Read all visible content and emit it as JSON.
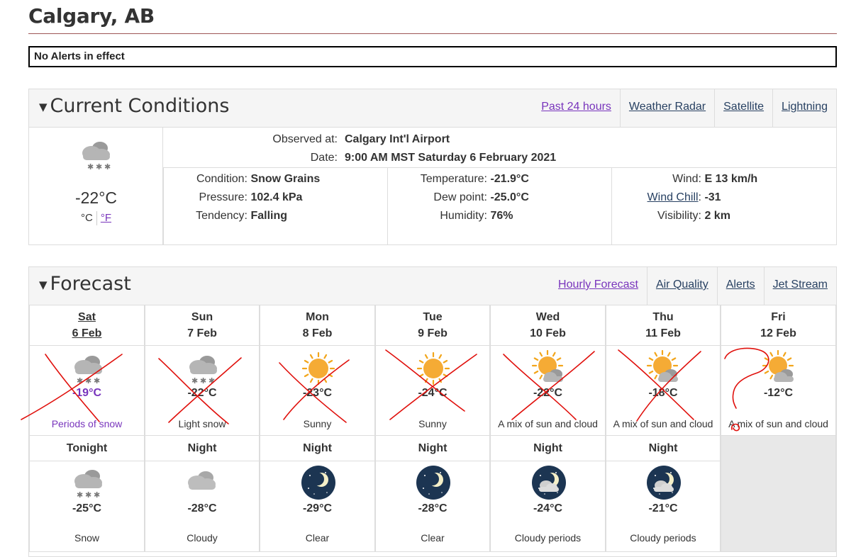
{
  "location": {
    "title": "Calgary, AB"
  },
  "alerts": {
    "text": "No Alerts in effect"
  },
  "current_conditions": {
    "heading": "Current Conditions",
    "links": [
      "Past 24 hours",
      "Weather Radar",
      "Satellite",
      "Lightning"
    ],
    "icon": "snow-grains-icon",
    "temp": "-22°C",
    "unit_c": "°C",
    "unit_f": "°F",
    "observed_label": "Observed at:",
    "observed_value": "Calgary Int'l Airport",
    "date_label": "Date:",
    "date_value": "9:00 AM MST Saturday 6 February 2021",
    "condition_label": "Condition:",
    "condition_value": "Snow Grains",
    "pressure_label": "Pressure:",
    "pressure_value": "102.4 kPa",
    "tendency_label": "Tendency:",
    "tendency_value": "Falling",
    "temperature_label": "Temperature:",
    "temperature_value": "-21.9°C",
    "dewpoint_label": "Dew point:",
    "dewpoint_value": "-25.0°C",
    "humidity_label": "Humidity:",
    "humidity_value": "76%",
    "wind_label": "Wind:",
    "wind_value": "E 13 km/h",
    "windchill_label": "Wind Chill",
    "windchill_value": "-31",
    "visibility_label": "Visibility:",
    "visibility_value": "2 km"
  },
  "forecast": {
    "heading": "Forecast",
    "links": [
      "Hourly Forecast",
      "Air Quality",
      "Alerts",
      "Jet Stream"
    ],
    "days": [
      {
        "day": "Sat",
        "date": "6 Feb",
        "icon": "snow-icon",
        "temp": "-19°C",
        "summary": "Periods of snow"
      },
      {
        "day": "Sun",
        "date": "7 Feb",
        "icon": "snow-icon",
        "temp": "-22°C",
        "summary": "Light snow"
      },
      {
        "day": "Mon",
        "date": "8 Feb",
        "icon": "sun-icon",
        "temp": "-23°C",
        "summary": "Sunny"
      },
      {
        "day": "Tue",
        "date": "9 Feb",
        "icon": "sun-icon",
        "temp": "-24°C",
        "summary": "Sunny"
      },
      {
        "day": "Wed",
        "date": "10 Feb",
        "icon": "sun-cloud-icon",
        "temp": "-22°C",
        "summary": "A mix of sun and cloud"
      },
      {
        "day": "Thu",
        "date": "11 Feb",
        "icon": "sun-cloud-icon",
        "temp": "-18°C",
        "summary": "A mix of sun and cloud"
      },
      {
        "day": "Fri",
        "date": "12 Feb",
        "icon": "sun-cloud-icon",
        "temp": "-12°C",
        "summary": "A mix of sun and cloud"
      }
    ],
    "nights": [
      {
        "label": "Tonight",
        "icon": "snow-icon",
        "temp": "-25°C",
        "summary": "Snow"
      },
      {
        "label": "Night",
        "icon": "cloud-icon",
        "temp": "-28°C",
        "summary": "Cloudy"
      },
      {
        "label": "Night",
        "icon": "moon-icon",
        "temp": "-29°C",
        "summary": "Clear"
      },
      {
        "label": "Night",
        "icon": "moon-icon",
        "temp": "-28°C",
        "summary": "Clear"
      },
      {
        "label": "Night",
        "icon": "moon-cloud-icon",
        "temp": "-24°C",
        "summary": "Cloudy periods"
      },
      {
        "label": "Night",
        "icon": "moon-cloud-icon",
        "temp": "-21°C",
        "summary": "Cloudy periods"
      }
    ]
  },
  "colors": {
    "annotation_red": "#e0100c",
    "link_visited": "#7834bc",
    "link": "#284162"
  }
}
